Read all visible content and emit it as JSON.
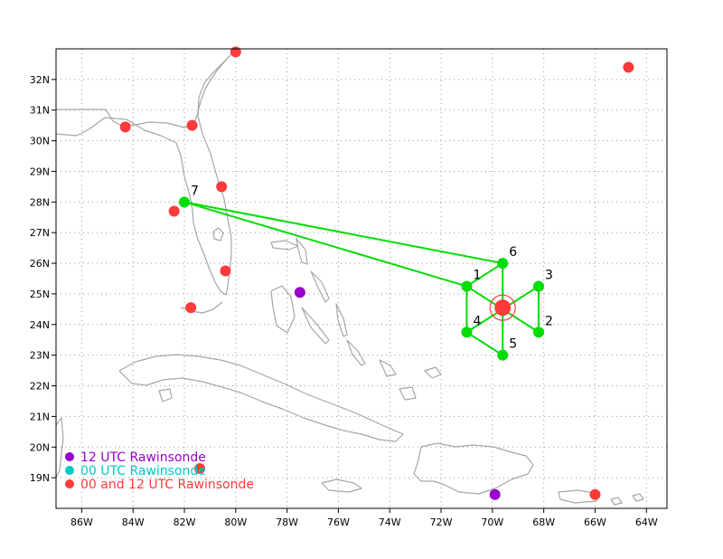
{
  "map": {
    "lon_range": [
      -87,
      -63.2
    ],
    "lat_range": [
      18.0,
      33.0
    ],
    "grid": "dotted",
    "x_ticks": [
      {
        "lon": -86,
        "label": "86W"
      },
      {
        "lon": -84,
        "label": "84W"
      },
      {
        "lon": -82,
        "label": "82W"
      },
      {
        "lon": -80,
        "label": "80W"
      },
      {
        "lon": -78,
        "label": "78W"
      },
      {
        "lon": -76,
        "label": "76W"
      },
      {
        "lon": -74,
        "label": "74W"
      },
      {
        "lon": -72,
        "label": "72W"
      },
      {
        "lon": -70,
        "label": "70W"
      },
      {
        "lon": -68,
        "label": "68W"
      },
      {
        "lon": -66,
        "label": "66W"
      },
      {
        "lon": -64,
        "label": "64W"
      }
    ],
    "y_ticks": [
      {
        "lat": 19,
        "label": "19N"
      },
      {
        "lat": 20,
        "label": "20N"
      },
      {
        "lat": 21,
        "label": "21N"
      },
      {
        "lat": 22,
        "label": "22N"
      },
      {
        "lat": 23,
        "label": "23N"
      },
      {
        "lat": 24,
        "label": "24N"
      },
      {
        "lat": 25,
        "label": "25N"
      },
      {
        "lat": 26,
        "label": "26N"
      },
      {
        "lat": 27,
        "label": "27N"
      },
      {
        "lat": 28,
        "label": "28N"
      },
      {
        "lat": 29,
        "label": "29N"
      },
      {
        "lat": 30,
        "label": "30N"
      },
      {
        "lat": 31,
        "label": "31N"
      },
      {
        "lat": 32,
        "label": "32N"
      }
    ],
    "colors": {
      "coast": "#a6a6a6",
      "grid": "#9a9a9a",
      "track": "#00dd00",
      "ship_point": "#00dd00",
      "storm": "#ff3a3a",
      "rawinsonde_12": "#9900cc",
      "rawinsonde_00": "#00c8c8",
      "rawinsonde_both": "#ff3a3a"
    }
  },
  "storm_center": {
    "lon": -69.6,
    "lat": 24.55
  },
  "sampling_points": [
    {
      "label": "1",
      "lon": -71.0,
      "lat": 25.25
    },
    {
      "label": "2",
      "lon": -68.2,
      "lat": 23.75
    },
    {
      "label": "3",
      "lon": -68.2,
      "lat": 25.25
    },
    {
      "label": "4",
      "lon": -71.0,
      "lat": 23.75
    },
    {
      "label": "5",
      "lon": -69.6,
      "lat": 23.0
    },
    {
      "label": "6",
      "lon": -69.6,
      "lat": 26.0
    },
    {
      "label": "7",
      "lon": -82.0,
      "lat": 28.0
    }
  ],
  "rawinsondes": [
    {
      "type": "12",
      "lon": -77.5,
      "lat": 25.05
    },
    {
      "type": "12",
      "lon": -69.9,
      "lat": 18.45
    },
    {
      "type": "both",
      "lon": -80.0,
      "lat": 32.9
    },
    {
      "type": "both",
      "lon": -84.3,
      "lat": 30.45
    },
    {
      "type": "both",
      "lon": -81.7,
      "lat": 30.5
    },
    {
      "type": "both",
      "lon": -80.55,
      "lat": 28.5
    },
    {
      "type": "both",
      "lon": -82.4,
      "lat": 27.7
    },
    {
      "type": "both",
      "lon": -80.4,
      "lat": 25.75
    },
    {
      "type": "both",
      "lon": -81.75,
      "lat": 24.55
    },
    {
      "type": "both",
      "lon": -81.4,
      "lat": 19.3
    },
    {
      "type": "both",
      "lon": -66.0,
      "lat": 18.45
    },
    {
      "type": "both",
      "lon": -64.7,
      "lat": 32.4
    }
  ],
  "legend": [
    {
      "label": "12 UTC Rawinsonde",
      "color": "#9900cc"
    },
    {
      "label": "00 UTC Rawinsonde",
      "color": "#00c8c8"
    },
    {
      "label": "00 and 12 UTC Rawinsonde",
      "color": "#ff3a3a"
    }
  ]
}
